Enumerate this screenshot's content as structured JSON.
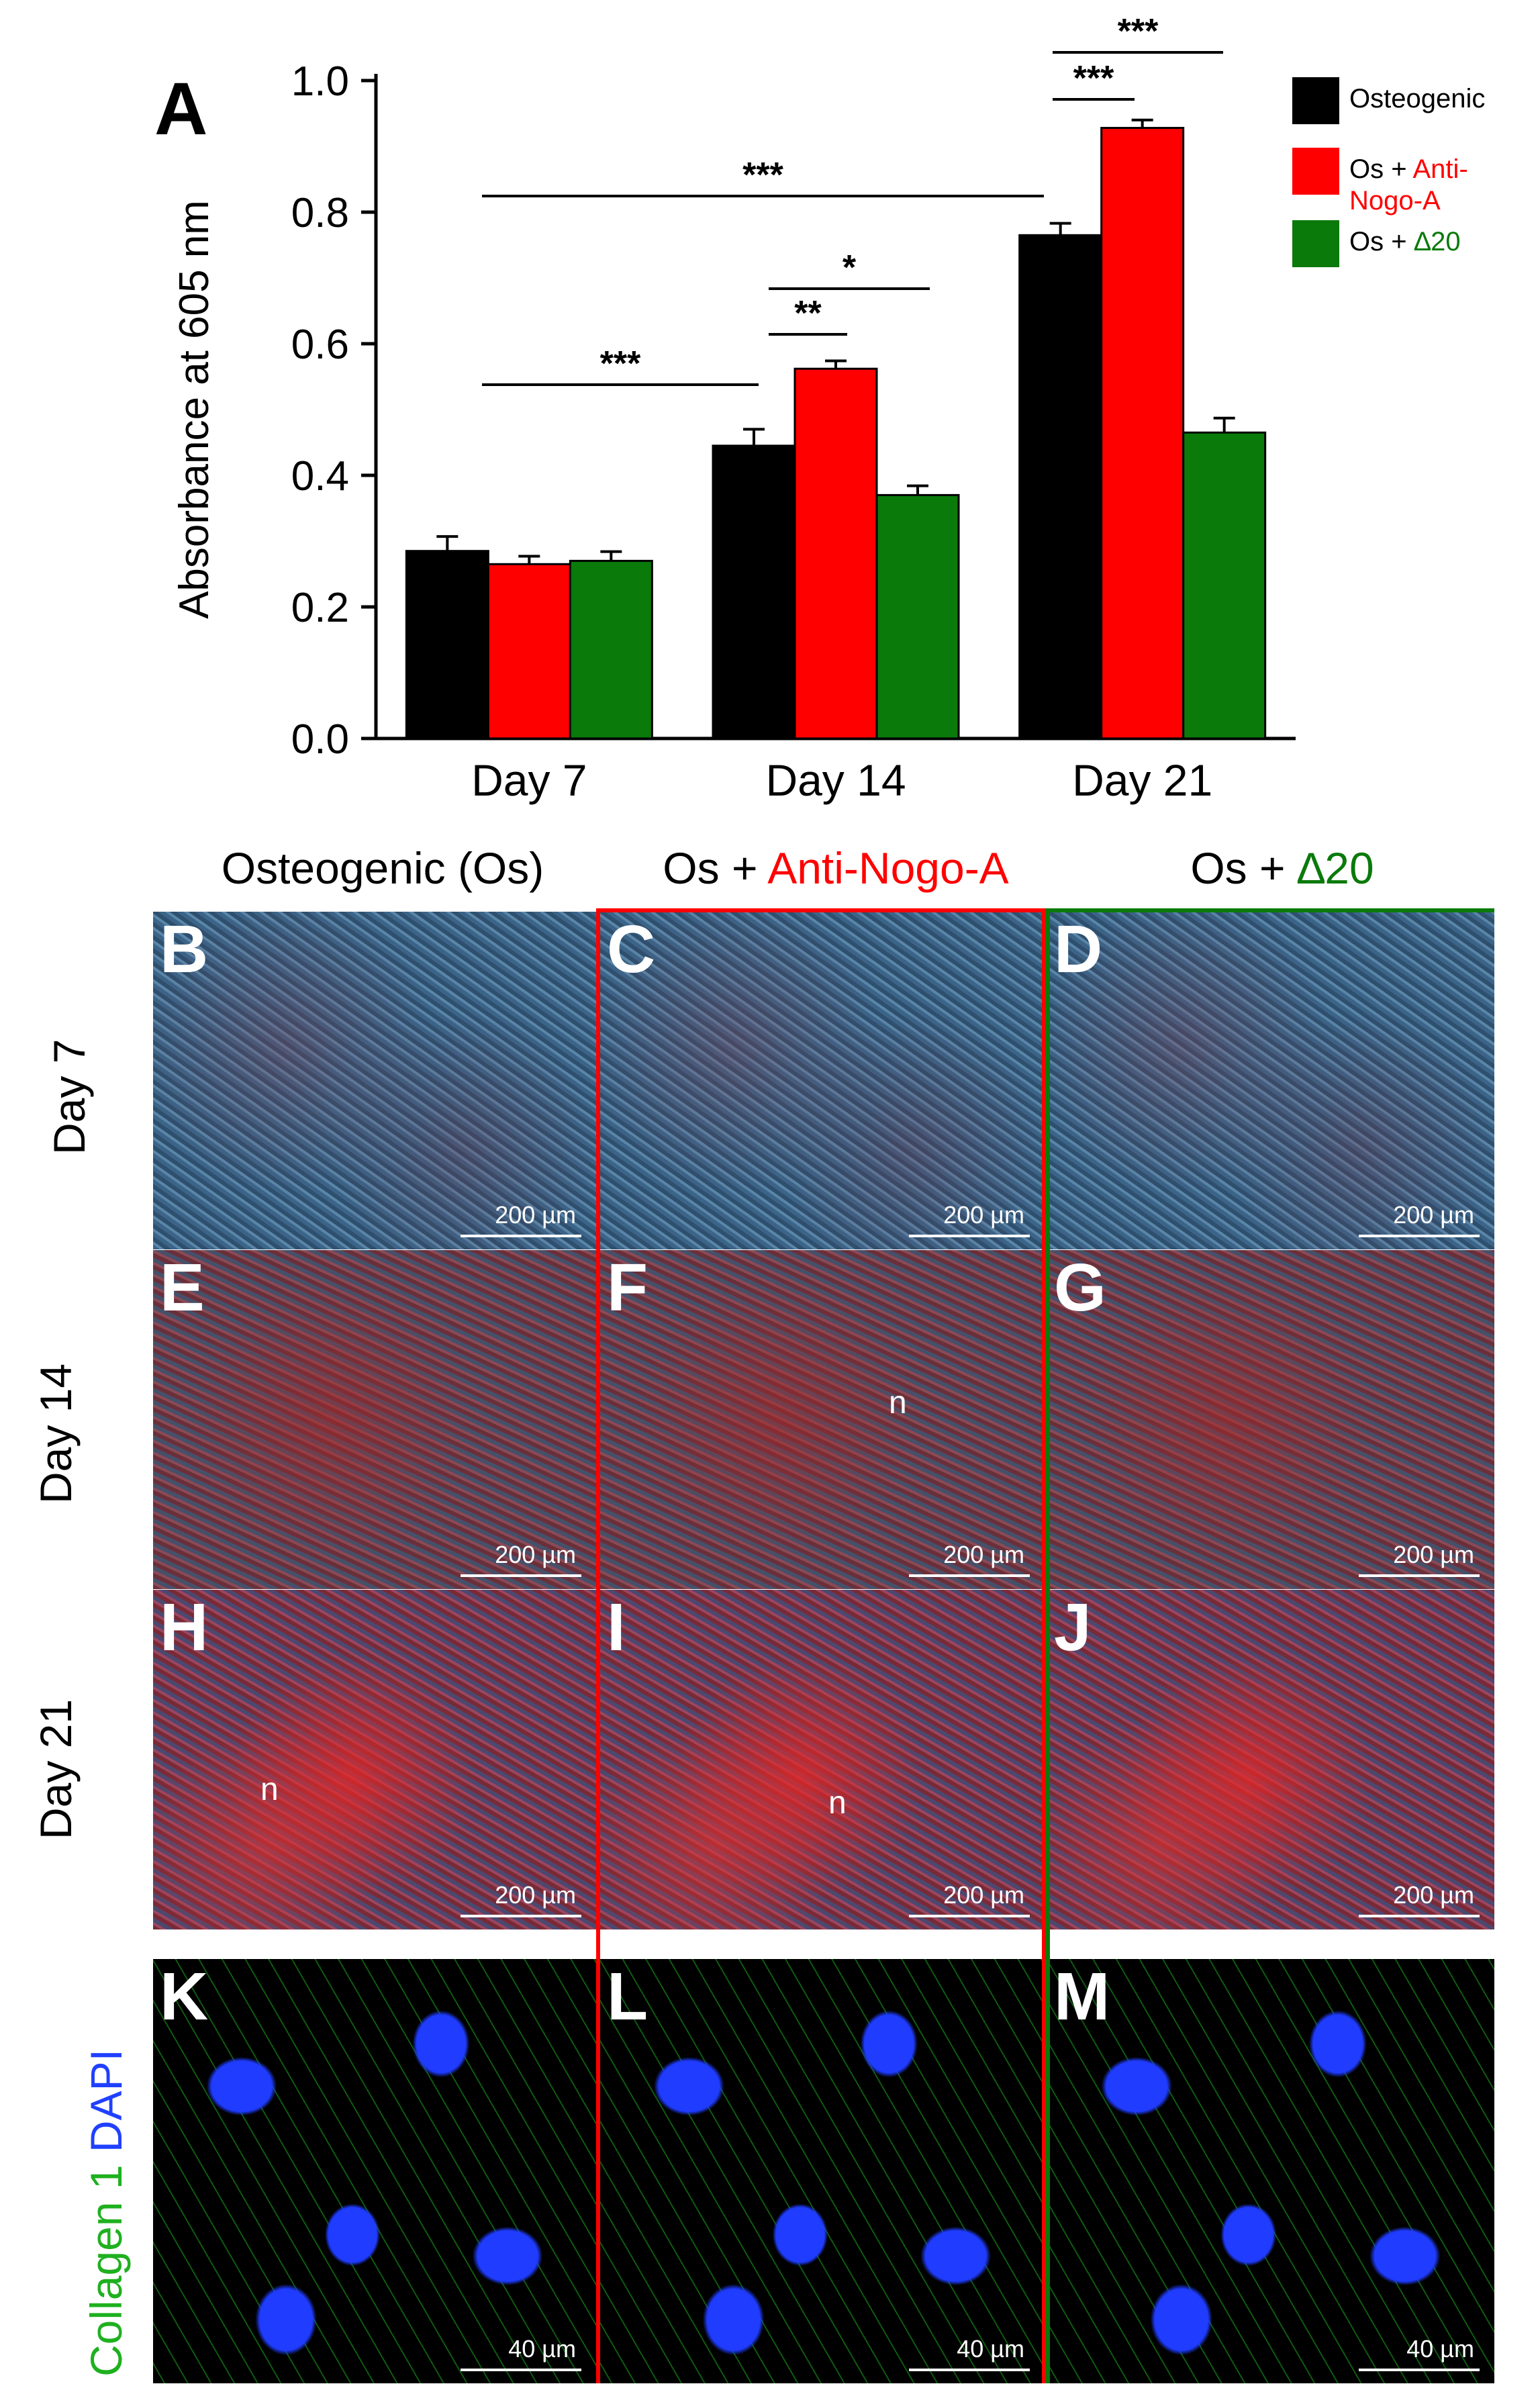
{
  "figure": {
    "panel_a_letter": "A",
    "column_headers": [
      {
        "prefix": "Osteogenic (Os)",
        "suffix": ""
      },
      {
        "prefix": "Os + ",
        "suffix": "Anti-Nogo-A"
      },
      {
        "prefix": "Os + ",
        "suffix": "∆20"
      }
    ],
    "row_labels": [
      "Day 7",
      "Day 14",
      "Day 21"
    ],
    "stain_label": {
      "part1": "Collagen 1",
      "part2": "DAPI"
    },
    "panels": [
      {
        "letter": "B",
        "scale": "200 µm",
        "nodule": ""
      },
      {
        "letter": "C",
        "scale": "200 µm",
        "nodule": ""
      },
      {
        "letter": "D",
        "scale": "200 µm",
        "nodule": ""
      },
      {
        "letter": "E",
        "scale": "200 µm",
        "nodule": ""
      },
      {
        "letter": "F",
        "scale": "200 µm",
        "nodule": "n"
      },
      {
        "letter": "G",
        "scale": "200 µm",
        "nodule": ""
      },
      {
        "letter": "H",
        "scale": "200 µm",
        "nodule": "n"
      },
      {
        "letter": "I",
        "scale": "200 µm",
        "nodule": "n"
      },
      {
        "letter": "J",
        "scale": "200 µm",
        "nodule": ""
      },
      {
        "letter": "K",
        "scale": "40 µm",
        "nodule": ""
      },
      {
        "letter": "L",
        "scale": "40 µm",
        "nodule": ""
      },
      {
        "letter": "M",
        "scale": "40 µm",
        "nodule": ""
      }
    ]
  },
  "colors": {
    "osteogenic": "#000000",
    "anti_nogo": "#ff0000",
    "delta20": "#0a7a0a"
  },
  "chart_data": {
    "type": "bar",
    "ylabel": "Absorbance at 605 nm",
    "xlabel": "",
    "ylim": [
      0,
      1.0
    ],
    "yticks": [
      "0.0",
      "0.2",
      "0.4",
      "0.6",
      "0.8",
      "1.0"
    ],
    "categories": [
      "Day 7",
      "Day 14",
      "Day 21"
    ],
    "series": [
      {
        "name": "Osteogenic",
        "values": [
          0.285,
          0.445,
          0.765
        ],
        "errors": [
          0.022,
          0.025,
          0.018
        ]
      },
      {
        "name": "Os + Anti-Nogo-A",
        "values": [
          0.265,
          0.562,
          0.928
        ],
        "errors": [
          0.012,
          0.012,
          0.012
        ]
      },
      {
        "name": "Os + ∆20",
        "values": [
          0.27,
          0.37,
          0.465
        ],
        "errors": [
          0.014,
          0.014,
          0.022
        ]
      }
    ],
    "legend": {
      "position": "top-right",
      "entries": [
        {
          "parts": [
            "Osteogenic"
          ]
        },
        {
          "parts": [
            "Os + ",
            "Anti-",
            "Nogo-A"
          ]
        },
        {
          "parts": [
            "Os + ",
            "∆20"
          ]
        }
      ]
    },
    "significance": [
      {
        "label": "***",
        "from": "Day 7",
        "to": "Day 21"
      },
      {
        "label": "***",
        "from": "Day 7",
        "to": "Day 14"
      },
      {
        "label": "**",
        "from": "Day 14 Osteogenic",
        "to": "Day 14 Anti-Nogo-A"
      },
      {
        "label": "*",
        "from": "Day 14 Osteogenic",
        "to": "Day 14 ∆20"
      },
      {
        "label": "***",
        "from": "Day 21 Osteogenic",
        "to": "Day 21 Anti-Nogo-A"
      },
      {
        "label": "***",
        "from": "Day 21 Osteogenic",
        "to": "Day 21 ∆20"
      }
    ],
    "grid": false
  }
}
